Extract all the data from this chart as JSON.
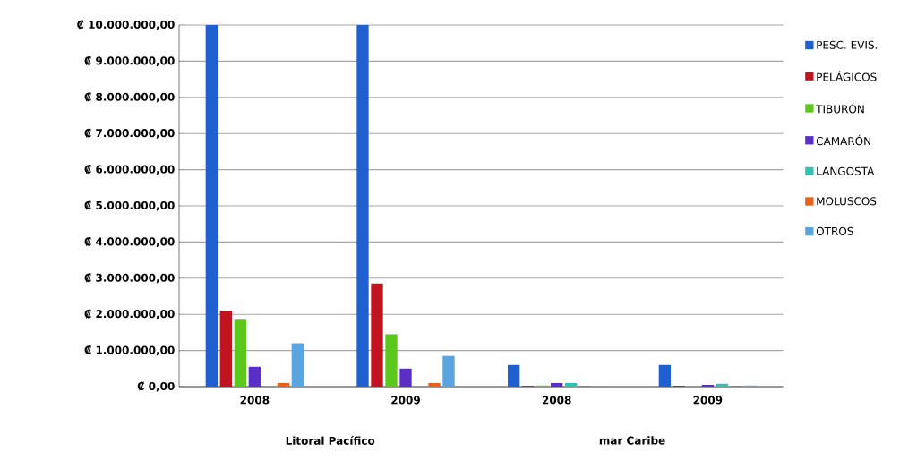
{
  "chart_data": {
    "type": "bar",
    "categories": [
      "2008",
      "2009",
      "2008",
      "2009"
    ],
    "annotations": [
      "Litoral Pacífico",
      "mar Caribe"
    ],
    "series": [
      {
        "name": "PESC. EVIS.",
        "color": "#1f5fd0",
        "values": [
          10000000,
          10000000,
          600000,
          600000
        ]
      },
      {
        "name": "PELÁGICOS",
        "color": "#c0141e",
        "values": [
          2100000,
          2850000,
          20000,
          20000
        ]
      },
      {
        "name": "TIBURÓN",
        "color": "#5cc81e",
        "values": [
          1850000,
          1450000,
          30000,
          20000
        ]
      },
      {
        "name": "CAMARÓN",
        "color": "#5a2fc8",
        "values": [
          550000,
          500000,
          100000,
          50000
        ]
      },
      {
        "name": "LANGOSTA",
        "color": "#2ec3b0",
        "values": [
          20000,
          20000,
          100000,
          80000
        ]
      },
      {
        "name": "MOLUSCOS",
        "color": "#e8601a",
        "values": [
          100000,
          100000,
          20000,
          20000
        ]
      },
      {
        "name": "OTROS",
        "color": "#5aa5e0",
        "values": [
          1200000,
          850000,
          20000,
          30000
        ]
      }
    ],
    "ylim": [
      0,
      10000000
    ],
    "yticks": [
      {
        "value": 0,
        "label": "₡ 0,00"
      },
      {
        "value": 1000000,
        "label": "₡ 1.000.000,00"
      },
      {
        "value": 2000000,
        "label": "₡ 2.000.000,00"
      },
      {
        "value": 3000000,
        "label": "₡ 3.000.000,00"
      },
      {
        "value": 4000000,
        "label": "₡ 4.000.000,00"
      },
      {
        "value": 5000000,
        "label": "₡ 5.000.000,00"
      },
      {
        "value": 6000000,
        "label": "₡ 6.000.000,00"
      },
      {
        "value": 7000000,
        "label": "₡ 7.000.000,00"
      },
      {
        "value": 8000000,
        "label": "₡ 8.000.000,00"
      },
      {
        "value": 9000000,
        "label": "₡ 9.000.000,00"
      },
      {
        "value": 10000000,
        "label": "₡ 10.000.000,00"
      }
    ],
    "grid": "y",
    "legend": "right"
  }
}
